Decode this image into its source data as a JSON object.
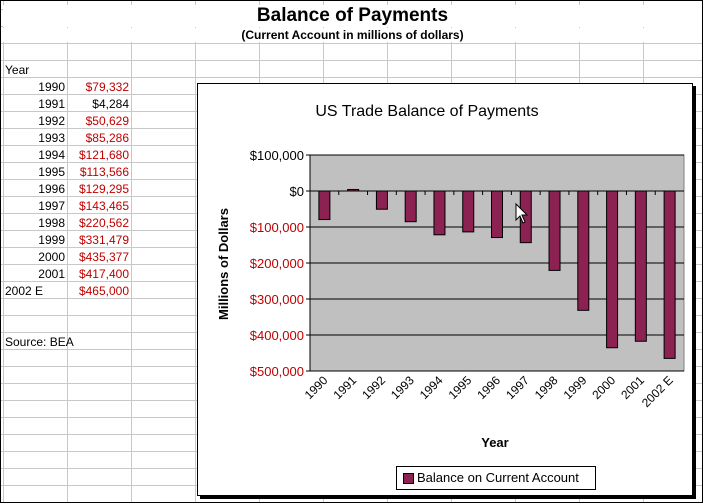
{
  "sheet": {
    "title": "Balance of Payments",
    "subtitle": "(Current Account in millions of dollars)",
    "year_header": "Year",
    "rows": [
      {
        "year": "1990",
        "value": "$79,332",
        "negative": true
      },
      {
        "year": "1991",
        "value": "$4,284",
        "negative": false
      },
      {
        "year": "1992",
        "value": "$50,629",
        "negative": true
      },
      {
        "year": "1993",
        "value": "$85,286",
        "negative": true
      },
      {
        "year": "1994",
        "value": "$121,680",
        "negative": true
      },
      {
        "year": "1995",
        "value": "$113,566",
        "negative": true
      },
      {
        "year": "1996",
        "value": "$129,295",
        "negative": true
      },
      {
        "year": "1997",
        "value": "$143,465",
        "negative": true
      },
      {
        "year": "1998",
        "value": "$220,562",
        "negative": true
      },
      {
        "year": "1999",
        "value": "$331,479",
        "negative": true
      },
      {
        "year": "2000",
        "value": "$435,377",
        "negative": true
      },
      {
        "year": "2001",
        "value": "$417,400",
        "negative": true
      },
      {
        "year": "2002 E",
        "value": "$465,000",
        "negative": true
      }
    ],
    "source": "Source:  BEA"
  },
  "colors": {
    "negative_text": "#c00000",
    "bar_fill": "#8b2252",
    "plot_background": "#c0c0c0"
  },
  "chart_data": {
    "type": "bar",
    "title": "US Trade Balance of Payments",
    "xlabel": "Year",
    "ylabel": "Millions of Dollars",
    "categories": [
      "1990",
      "1991",
      "1992",
      "1993",
      "1994",
      "1995",
      "1996",
      "1997",
      "1998",
      "1999",
      "2000",
      "2001",
      "2002 E"
    ],
    "series": [
      {
        "name": "Balance on Current Account",
        "values": [
          -79332,
          4284,
          -50629,
          -85286,
          -121680,
          -113566,
          -129295,
          -143465,
          -220562,
          -331479,
          -435377,
          -417400,
          -465000
        ]
      }
    ],
    "ylim": [
      -500000,
      100000
    ],
    "yticks": [
      {
        "value": 100000,
        "label": "$100,000"
      },
      {
        "value": 0,
        "label": "$0"
      },
      {
        "value": -100000,
        "label": "$100,000"
      },
      {
        "value": -200000,
        "label": "$200,000"
      },
      {
        "value": -300000,
        "label": "$300,000"
      },
      {
        "value": -400000,
        "label": "$400,000"
      },
      {
        "value": -500000,
        "label": "$500,000"
      }
    ],
    "grid": true,
    "legend_position": "bottom"
  }
}
